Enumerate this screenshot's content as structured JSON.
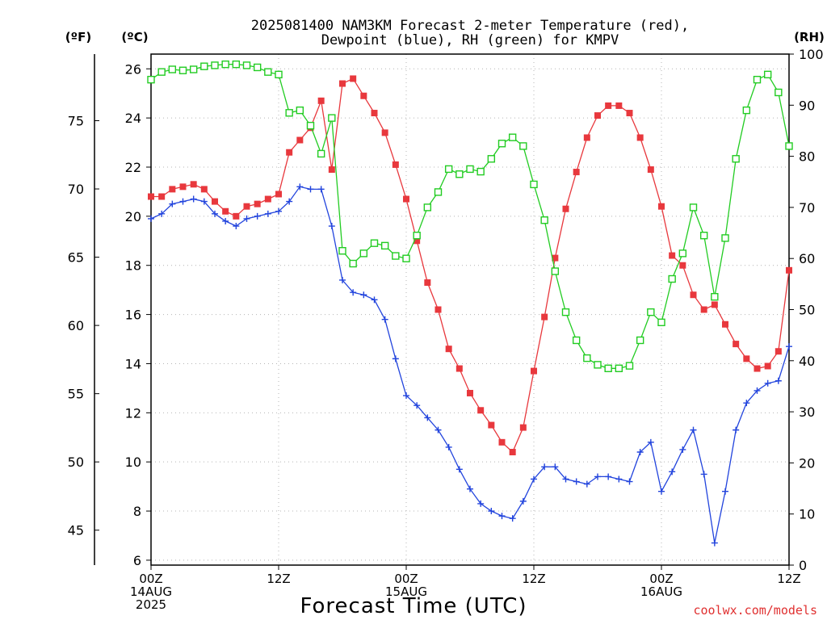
{
  "chart_data": {
    "type": "line",
    "title_line1": "2025081400 NAM3KM Forecast 2-meter Temperature (red),",
    "title_line2": "Dewpoint (blue), RH (green) for KMPV",
    "unit_f": "(ºF)",
    "unit_c": "(ºC)",
    "unit_rh": "(RH)",
    "xlabel": "Forecast Time (UTC)",
    "credit": "coolwx.com/models",
    "x_range_hours": [
      0,
      60
    ],
    "x_ticks": [
      {
        "hour": 0,
        "line1": "00Z",
        "line2": "14AUG",
        "line3": "2025"
      },
      {
        "hour": 12,
        "line1": "12Z",
        "line2": "",
        "line3": ""
      },
      {
        "hour": 24,
        "line1": "00Z",
        "line2": "15AUG",
        "line3": ""
      },
      {
        "hour": 36,
        "line1": "12Z",
        "line2": "",
        "line3": ""
      },
      {
        "hour": 48,
        "line1": "00Z",
        "line2": "16AUG",
        "line3": ""
      },
      {
        "hour": 60,
        "line1": "12Z",
        "line2": "",
        "line3": ""
      }
    ],
    "celsius_axis": {
      "min": 6,
      "max": 26,
      "ticks": [
        6,
        8,
        10,
        12,
        14,
        16,
        18,
        20,
        22,
        24,
        26
      ]
    },
    "plot_range_c": [
      5.8,
      26.6
    ],
    "fahrenheit_ticks": [
      45,
      50,
      55,
      60,
      65,
      70,
      75
    ],
    "rh_axis": {
      "min": 0,
      "max": 100,
      "ticks": [
        0,
        10,
        20,
        30,
        40,
        50,
        60,
        70,
        80,
        90,
        100
      ]
    },
    "grid": true,
    "colors": {
      "temperature": "#e8383d",
      "dewpoint": "#2244dd",
      "rh": "#22cc22",
      "grid": "#b4b4b4"
    },
    "hours": [
      0,
      1,
      2,
      3,
      4,
      5,
      6,
      7,
      8,
      9,
      10,
      11,
      12,
      13,
      14,
      15,
      16,
      17,
      18,
      19,
      20,
      21,
      22,
      23,
      24,
      25,
      26,
      27,
      28,
      29,
      30,
      31,
      32,
      33,
      34,
      35,
      36,
      37,
      38,
      39,
      40,
      41,
      42,
      43,
      44,
      45,
      46,
      47,
      48,
      49,
      50,
      51,
      52,
      53,
      54,
      55,
      56,
      57,
      58,
      59,
      60
    ],
    "series": [
      {
        "name": "Temperature",
        "unit": "C",
        "values": [
          20.8,
          20.8,
          21.1,
          21.2,
          21.3,
          21.1,
          20.6,
          20.2,
          20.0,
          20.4,
          20.5,
          20.7,
          20.9,
          22.6,
          23.1,
          23.6,
          24.7,
          21.9,
          25.4,
          25.6,
          24.9,
          24.2,
          23.4,
          22.1,
          20.7,
          19.0,
          17.3,
          16.2,
          14.6,
          13.8,
          12.8,
          12.1,
          11.5,
          10.8,
          10.4,
          11.4,
          13.7,
          15.9,
          18.3,
          20.3,
          21.8,
          23.2,
          24.1,
          24.5,
          24.5,
          24.2,
          23.2,
          21.9,
          20.4,
          18.4,
          18.0,
          16.8,
          16.2,
          16.4,
          15.6,
          14.8,
          14.2,
          13.8,
          13.9,
          14.5,
          17.8
        ]
      },
      {
        "name": "Dewpoint",
        "unit": "C",
        "values": [
          19.9,
          20.1,
          20.5,
          20.6,
          20.7,
          20.6,
          20.1,
          19.8,
          19.6,
          19.9,
          20.0,
          20.1,
          20.2,
          20.6,
          21.2,
          21.1,
          21.1,
          19.6,
          17.4,
          16.9,
          16.8,
          16.6,
          15.8,
          14.2,
          12.7,
          12.3,
          11.8,
          11.3,
          10.6,
          9.7,
          8.9,
          8.3,
          8.0,
          7.8,
          7.7,
          8.4,
          9.3,
          9.8,
          9.8,
          9.3,
          9.2,
          9.1,
          9.4,
          9.4,
          9.3,
          9.2,
          10.4,
          10.8,
          8.8,
          9.6,
          10.5,
          11.3,
          9.5,
          6.7,
          8.8,
          11.3,
          12.4,
          12.9,
          13.2,
          13.3,
          14.7
        ]
      },
      {
        "name": "RH",
        "unit": "%",
        "values": [
          95,
          96.5,
          97,
          96.8,
          97,
          97.6,
          97.8,
          98,
          98,
          97.8,
          97.4,
          96.5,
          96,
          88.5,
          89,
          86,
          80.5,
          87.5,
          61.5,
          59,
          61,
          63,
          62.5,
          60.5,
          60,
          64.5,
          70,
          73,
          77.5,
          76.5,
          77.5,
          77,
          79.5,
          82.5,
          83.7,
          82,
          74.5,
          67.5,
          57.5,
          49.5,
          44,
          40.5,
          39.2,
          38.5,
          38.5,
          39,
          44,
          49.5,
          47.5,
          56,
          61,
          70,
          64.5,
          52.5,
          64,
          79.5,
          89,
          95,
          96,
          92.5,
          82
        ]
      }
    ]
  }
}
